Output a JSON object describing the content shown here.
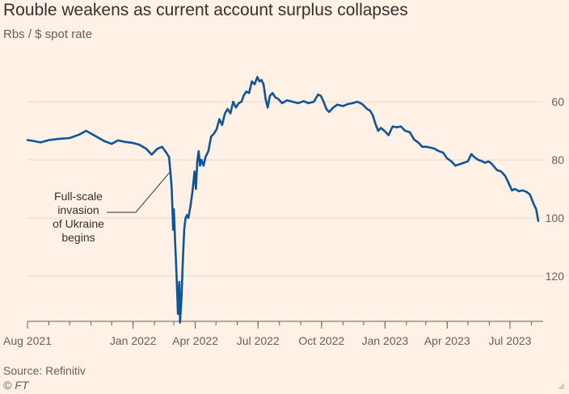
{
  "title": "Rouble weakens as current account surplus collapses",
  "subtitle": "Rbs / $ spot rate",
  "source": "Source: Refinitiv",
  "credit": "© FT",
  "colors": {
    "line": "#0f5499",
    "grid": "#e6d9ce",
    "background": "#fff1e5"
  },
  "chart_data": {
    "type": "line",
    "title": "Rouble weakens as current account surplus collapses",
    "ylabel": "Rbs / $ spot rate",
    "y_inverted": true,
    "ylim": [
      137,
      40
    ],
    "y_ticks": [
      "60",
      "80",
      "100",
      "120"
    ],
    "x_ticks": [
      "Aug 2021",
      "Jan 2022",
      "Apr 2022",
      "Jul 2022",
      "Oct 2022",
      "Jan 2023",
      "Apr 2023",
      "Jul 2023"
    ],
    "annotation": {
      "lines": [
        "Full-scale",
        "invasion",
        "of Ukraine",
        "begins"
      ],
      "date": "2022-02-24",
      "value": 84
    },
    "series": [
      {
        "name": "RUB per USD",
        "points": [
          [
            "2021-08-01",
            73.2
          ],
          [
            "2021-08-10",
            73.5
          ],
          [
            "2021-08-20",
            74.0
          ],
          [
            "2021-09-01",
            73.2
          ],
          [
            "2021-09-15",
            72.8
          ],
          [
            "2021-10-01",
            72.5
          ],
          [
            "2021-10-15",
            71.3
          ],
          [
            "2021-10-25",
            70.0
          ],
          [
            "2021-11-05",
            71.5
          ],
          [
            "2021-11-20",
            73.5
          ],
          [
            "2021-12-01",
            74.5
          ],
          [
            "2021-12-10",
            73.3
          ],
          [
            "2021-12-20",
            73.8
          ],
          [
            "2022-01-01",
            74.2
          ],
          [
            "2022-01-10",
            74.8
          ],
          [
            "2022-01-20",
            76.2
          ],
          [
            "2022-01-28",
            78.2
          ],
          [
            "2022-02-05",
            76.2
          ],
          [
            "2022-02-12",
            75.5
          ],
          [
            "2022-02-18",
            77.5
          ],
          [
            "2022-02-22",
            79.0
          ],
          [
            "2022-02-24",
            84.0
          ],
          [
            "2022-02-26",
            90.0
          ],
          [
            "2022-02-28",
            104.0
          ],
          [
            "2022-03-01",
            97.0
          ],
          [
            "2022-03-03",
            109.0
          ],
          [
            "2022-03-05",
            120.0
          ],
          [
            "2022-03-07",
            133.0
          ],
          [
            "2022-03-09",
            122.0
          ],
          [
            "2022-03-10",
            136.0
          ],
          [
            "2022-03-12",
            128.0
          ],
          [
            "2022-03-14",
            115.0
          ],
          [
            "2022-03-16",
            104.0
          ],
          [
            "2022-03-18",
            100.0
          ],
          [
            "2022-03-20",
            99.0
          ],
          [
            "2022-03-22",
            100.0
          ],
          [
            "2022-03-25",
            96.0
          ],
          [
            "2022-03-28",
            91.0
          ],
          [
            "2022-03-31",
            84.0
          ],
          [
            "2022-04-02",
            90.0
          ],
          [
            "2022-04-04",
            80.5
          ],
          [
            "2022-04-06",
            77.0
          ],
          [
            "2022-04-08",
            82.0
          ],
          [
            "2022-04-10",
            80.0
          ],
          [
            "2022-04-13",
            82.0
          ],
          [
            "2022-04-16",
            79.0
          ],
          [
            "2022-04-20",
            77.0
          ],
          [
            "2022-04-24",
            72.0
          ],
          [
            "2022-04-28",
            71.0
          ],
          [
            "2022-05-02",
            69.5
          ],
          [
            "2022-05-06",
            66.0
          ],
          [
            "2022-05-10",
            68.0
          ],
          [
            "2022-05-14",
            64.0
          ],
          [
            "2022-05-18",
            62.5
          ],
          [
            "2022-05-22",
            64.0
          ],
          [
            "2022-05-26",
            60.0
          ],
          [
            "2022-05-30",
            62.0
          ],
          [
            "2022-06-03",
            60.5
          ],
          [
            "2022-06-07",
            60.0
          ],
          [
            "2022-06-10",
            58.0
          ],
          [
            "2022-06-14",
            56.5
          ],
          [
            "2022-06-18",
            57.0
          ],
          [
            "2022-06-22",
            53.0
          ],
          [
            "2022-06-26",
            54.0
          ],
          [
            "2022-06-30",
            51.5
          ],
          [
            "2022-07-03",
            53.0
          ],
          [
            "2022-07-06",
            52.5
          ],
          [
            "2022-07-09",
            54.0
          ],
          [
            "2022-07-12",
            59.0
          ],
          [
            "2022-07-15",
            62.0
          ],
          [
            "2022-07-18",
            58.0
          ],
          [
            "2022-07-22",
            57.0
          ],
          [
            "2022-07-26",
            58.5
          ],
          [
            "2022-07-30",
            59.0
          ],
          [
            "2022-08-05",
            60.5
          ],
          [
            "2022-08-12",
            59.5
          ],
          [
            "2022-08-20",
            60.0
          ],
          [
            "2022-08-28",
            60.5
          ],
          [
            "2022-09-05",
            59.8
          ],
          [
            "2022-09-12",
            60.5
          ],
          [
            "2022-09-20",
            60.0
          ],
          [
            "2022-09-26",
            57.5
          ],
          [
            "2022-09-30",
            58.0
          ],
          [
            "2022-10-04",
            60.0
          ],
          [
            "2022-10-08",
            62.5
          ],
          [
            "2022-10-12",
            63.5
          ],
          [
            "2022-10-18",
            62.0
          ],
          [
            "2022-10-24",
            61.0
          ],
          [
            "2022-11-01",
            61.5
          ],
          [
            "2022-11-08",
            60.8
          ],
          [
            "2022-11-15",
            60.5
          ],
          [
            "2022-11-22",
            60.0
          ],
          [
            "2022-11-29",
            60.8
          ],
          [
            "2022-12-06",
            62.5
          ],
          [
            "2022-12-10",
            63.0
          ],
          [
            "2022-12-14",
            64.5
          ],
          [
            "2022-12-18",
            67.5
          ],
          [
            "2022-12-22",
            70.0
          ],
          [
            "2022-12-26",
            69.0
          ],
          [
            "2022-12-31",
            70.0
          ],
          [
            "2023-01-06",
            71.5
          ],
          [
            "2023-01-12",
            68.5
          ],
          [
            "2023-01-18",
            68.8
          ],
          [
            "2023-01-24",
            68.5
          ],
          [
            "2023-01-30",
            70.0
          ],
          [
            "2023-02-06",
            70.5
          ],
          [
            "2023-02-12",
            73.0
          ],
          [
            "2023-02-18",
            74.0
          ],
          [
            "2023-02-24",
            75.5
          ],
          [
            "2023-03-02",
            75.5
          ],
          [
            "2023-03-08",
            75.8
          ],
          [
            "2023-03-14",
            76.2
          ],
          [
            "2023-03-20",
            77.0
          ],
          [
            "2023-03-26",
            77.5
          ],
          [
            "2023-04-01",
            79.5
          ],
          [
            "2023-04-07",
            80.5
          ],
          [
            "2023-04-13",
            82.0
          ],
          [
            "2023-04-19",
            81.5
          ],
          [
            "2023-04-25",
            81.0
          ],
          [
            "2023-05-01",
            80.5
          ],
          [
            "2023-05-06",
            78.0
          ],
          [
            "2023-05-10",
            79.0
          ],
          [
            "2023-05-16",
            80.0
          ],
          [
            "2023-05-22",
            80.5
          ],
          [
            "2023-05-26",
            81.0
          ],
          [
            "2023-05-31",
            80.5
          ],
          [
            "2023-06-05",
            81.5
          ],
          [
            "2023-06-12",
            83.5
          ],
          [
            "2023-06-18",
            84.0
          ],
          [
            "2023-06-24",
            85.5
          ],
          [
            "2023-06-27",
            87.0
          ],
          [
            "2023-06-30",
            88.5
          ],
          [
            "2023-07-04",
            90.5
          ],
          [
            "2023-07-08",
            90.0
          ],
          [
            "2023-07-14",
            90.8
          ],
          [
            "2023-07-19",
            90.5
          ],
          [
            "2023-07-25",
            91.0
          ],
          [
            "2023-07-30",
            92.0
          ],
          [
            "2023-08-04",
            95.0
          ],
          [
            "2023-08-08",
            97.0
          ],
          [
            "2023-08-11",
            101.0
          ]
        ]
      }
    ]
  }
}
